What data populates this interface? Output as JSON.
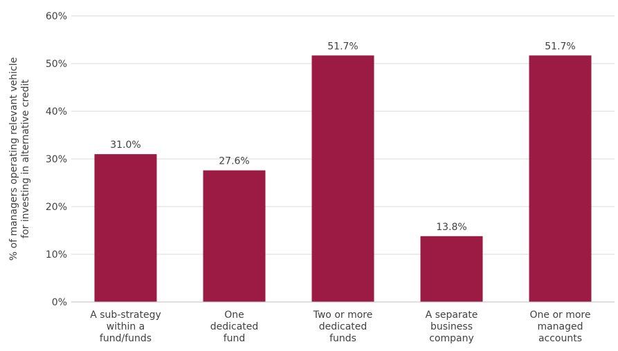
{
  "chart_data": {
    "type": "bar",
    "title": "",
    "xlabel": "",
    "ylabel_lines": [
      "% of managers operating relevant vehicle",
      "for investing in alternative credit"
    ],
    "categories": [
      [
        "A sub-strategy",
        "within a",
        "fund/funds"
      ],
      [
        "One",
        "dedicated",
        "fund"
      ],
      [
        "Two or more",
        "dedicated",
        "funds"
      ],
      [
        "A separate",
        "business",
        "company"
      ],
      [
        "One or more",
        "managed",
        "accounts"
      ]
    ],
    "values": [
      31.0,
      27.6,
      51.7,
      13.8,
      51.7
    ],
    "data_labels": [
      "31.0%",
      "27.6%",
      "51.7%",
      "13.8%",
      "51.7%"
    ],
    "ylim": [
      0,
      60
    ],
    "yticks": [
      0,
      10,
      20,
      30,
      40,
      50,
      60
    ],
    "ytick_labels": [
      "0%",
      "10%",
      "20%",
      "30%",
      "40%",
      "50%",
      "60%"
    ],
    "grid": true,
    "legend": "none",
    "colors": {
      "bar": "#9b1b45",
      "grid": "#d9d9d9",
      "axis": "#bfbfbf",
      "text": "#404040"
    }
  }
}
